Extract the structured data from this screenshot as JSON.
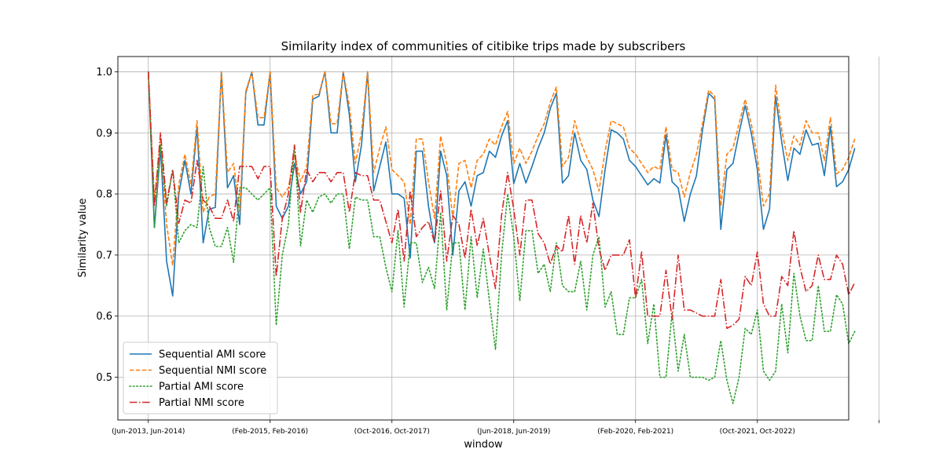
{
  "chart_data": {
    "type": "line",
    "title": "Similarity index of communities of citibike trips made by subscribers",
    "xlabel": "window",
    "ylabel": "Similarity value",
    "xlim": [
      -5,
      115
    ],
    "ylim": [
      0.43,
      1.025
    ],
    "x_ticks": [
      {
        "pos": 0,
        "label": "(Jun-2013, Jun-2014)"
      },
      {
        "pos": 20,
        "label": "(Feb-2015, Feb-2016)"
      },
      {
        "pos": 40,
        "label": "(Oct-2016, Oct-2017)"
      },
      {
        "pos": 60,
        "label": "(Jun-2018, Jun-2019)"
      },
      {
        "pos": 80,
        "label": "(Feb-2020, Feb-2021)"
      },
      {
        "pos": 100,
        "label": "(Oct-2021, Oct-2022)"
      },
      {
        "pos": 120,
        "label": ""
      }
    ],
    "y_ticks": [
      0.5,
      0.6,
      0.7,
      0.8,
      0.9,
      1.0
    ],
    "y_tick_labels": [
      "0.5",
      "0.6",
      "0.7",
      "0.8",
      "0.9",
      "1.0"
    ],
    "grid": true,
    "legend_position": "lower-left",
    "series": [
      {
        "name": "Sequential AMI score",
        "color": "#1f77b4",
        "style": "solid",
        "values": [
          1.0,
          0.745,
          0.875,
          0.69,
          0.633,
          0.8,
          0.855,
          0.8,
          0.91,
          0.72,
          0.775,
          0.778,
          1.0,
          0.81,
          0.83,
          0.75,
          0.965,
          1.0,
          0.913,
          0.913,
          1.0,
          0.78,
          0.76,
          0.78,
          0.85,
          0.8,
          0.82,
          0.955,
          0.96,
          1.0,
          0.9,
          0.9,
          1.0,
          0.93,
          0.82,
          0.88,
          1.0,
          0.805,
          0.845,
          0.885,
          0.8,
          0.8,
          0.793,
          0.695,
          0.87,
          0.87,
          0.78,
          0.72,
          0.87,
          0.83,
          0.7,
          0.805,
          0.82,
          0.78,
          0.83,
          0.835,
          0.87,
          0.86,
          0.895,
          0.92,
          0.817,
          0.85,
          0.818,
          0.845,
          0.875,
          0.9,
          0.94,
          0.965,
          0.818,
          0.83,
          0.9,
          0.855,
          0.84,
          0.79,
          0.763,
          0.84,
          0.905,
          0.9,
          0.89,
          0.855,
          0.845,
          0.83,
          0.815,
          0.825,
          0.818,
          0.897,
          0.82,
          0.81,
          0.755,
          0.8,
          0.83,
          0.905,
          0.965,
          0.955,
          0.742,
          0.84,
          0.85,
          0.9,
          0.945,
          0.9,
          0.84,
          0.742,
          0.775,
          0.96,
          0.885,
          0.822,
          0.875,
          0.865,
          0.905,
          0.88,
          0.883,
          0.83,
          0.91,
          0.812,
          0.82,
          0.84,
          0.875
        ]
      },
      {
        "name": "Sequential NMI score",
        "color": "#ff7f0e",
        "style": "dashed",
        "values": [
          1.0,
          0.79,
          0.888,
          0.75,
          0.683,
          0.815,
          0.865,
          0.815,
          0.92,
          0.77,
          0.795,
          0.8,
          1.0,
          0.835,
          0.85,
          0.77,
          0.968,
          1.0,
          0.925,
          0.925,
          1.0,
          0.81,
          0.795,
          0.81,
          0.865,
          0.82,
          0.845,
          0.962,
          0.963,
          1.0,
          0.915,
          0.915,
          1.0,
          0.945,
          0.85,
          0.9,
          1.0,
          0.835,
          0.875,
          0.91,
          0.84,
          0.83,
          0.82,
          0.75,
          0.89,
          0.89,
          0.82,
          0.76,
          0.895,
          0.85,
          0.76,
          0.85,
          0.855,
          0.81,
          0.855,
          0.865,
          0.89,
          0.88,
          0.91,
          0.935,
          0.85,
          0.875,
          0.85,
          0.87,
          0.895,
          0.915,
          0.95,
          0.975,
          0.845,
          0.86,
          0.92,
          0.885,
          0.86,
          0.84,
          0.805,
          0.87,
          0.92,
          0.915,
          0.91,
          0.875,
          0.865,
          0.85,
          0.835,
          0.845,
          0.84,
          0.91,
          0.84,
          0.835,
          0.795,
          0.835,
          0.865,
          0.915,
          0.97,
          0.96,
          0.78,
          0.865,
          0.875,
          0.915,
          0.955,
          0.915,
          0.86,
          0.78,
          0.8,
          0.978,
          0.905,
          0.855,
          0.895,
          0.88,
          0.92,
          0.9,
          0.9,
          0.855,
          0.925,
          0.833,
          0.84,
          0.86,
          0.89
        ]
      },
      {
        "name": "Partial AMI score",
        "color": "#2ca02c",
        "style": "dotted",
        "values": [
          1.0,
          0.745,
          0.88,
          0.78,
          0.84,
          0.72,
          0.74,
          0.75,
          0.745,
          0.845,
          0.745,
          0.714,
          0.714,
          0.745,
          0.688,
          0.81,
          0.81,
          0.8,
          0.79,
          0.8,
          0.81,
          0.585,
          0.7,
          0.75,
          0.88,
          0.715,
          0.79,
          0.77,
          0.795,
          0.8,
          0.785,
          0.8,
          0.8,
          0.71,
          0.795,
          0.79,
          0.79,
          0.73,
          0.73,
          0.68,
          0.64,
          0.74,
          0.615,
          0.72,
          0.72,
          0.655,
          0.68,
          0.645,
          0.77,
          0.61,
          0.72,
          0.72,
          0.61,
          0.73,
          0.63,
          0.71,
          0.625,
          0.545,
          0.7,
          0.8,
          0.73,
          0.625,
          0.74,
          0.74,
          0.67,
          0.685,
          0.64,
          0.72,
          0.65,
          0.64,
          0.64,
          0.69,
          0.61,
          0.7,
          0.73,
          0.615,
          0.64,
          0.57,
          0.57,
          0.63,
          0.63,
          0.66,
          0.555,
          0.62,
          0.5,
          0.5,
          0.605,
          0.51,
          0.57,
          0.5,
          0.5,
          0.5,
          0.495,
          0.5,
          0.56,
          0.495,
          0.457,
          0.5,
          0.58,
          0.57,
          0.61,
          0.51,
          0.495,
          0.51,
          0.62,
          0.54,
          0.67,
          0.6,
          0.56,
          0.56,
          0.65,
          0.575,
          0.575,
          0.635,
          0.62,
          0.555,
          0.575
        ]
      },
      {
        "name": "Partial NMI score",
        "color": "#d62728",
        "style": "dashdot",
        "values": [
          1.0,
          0.78,
          0.9,
          0.785,
          0.84,
          0.752,
          0.79,
          0.785,
          0.855,
          0.79,
          0.78,
          0.76,
          0.76,
          0.79,
          0.755,
          0.845,
          0.845,
          0.845,
          0.825,
          0.845,
          0.845,
          0.665,
          0.76,
          0.8,
          0.88,
          0.77,
          0.84,
          0.82,
          0.835,
          0.835,
          0.82,
          0.835,
          0.835,
          0.77,
          0.835,
          0.83,
          0.83,
          0.79,
          0.79,
          0.755,
          0.72,
          0.775,
          0.69,
          0.805,
          0.73,
          0.745,
          0.755,
          0.72,
          0.805,
          0.69,
          0.765,
          0.75,
          0.695,
          0.775,
          0.715,
          0.76,
          0.7,
          0.645,
          0.765,
          0.835,
          0.775,
          0.7,
          0.79,
          0.79,
          0.735,
          0.72,
          0.685,
          0.715,
          0.705,
          0.765,
          0.685,
          0.765,
          0.72,
          0.785,
          0.71,
          0.675,
          0.7,
          0.7,
          0.7,
          0.725,
          0.63,
          0.705,
          0.6,
          0.6,
          0.6,
          0.675,
          0.595,
          0.7,
          0.61,
          0.61,
          0.605,
          0.6,
          0.6,
          0.6,
          0.66,
          0.58,
          0.585,
          0.595,
          0.665,
          0.65,
          0.705,
          0.62,
          0.6,
          0.6,
          0.665,
          0.65,
          0.74,
          0.68,
          0.64,
          0.65,
          0.7,
          0.66,
          0.66,
          0.7,
          0.685,
          0.635,
          0.655
        ]
      }
    ]
  }
}
